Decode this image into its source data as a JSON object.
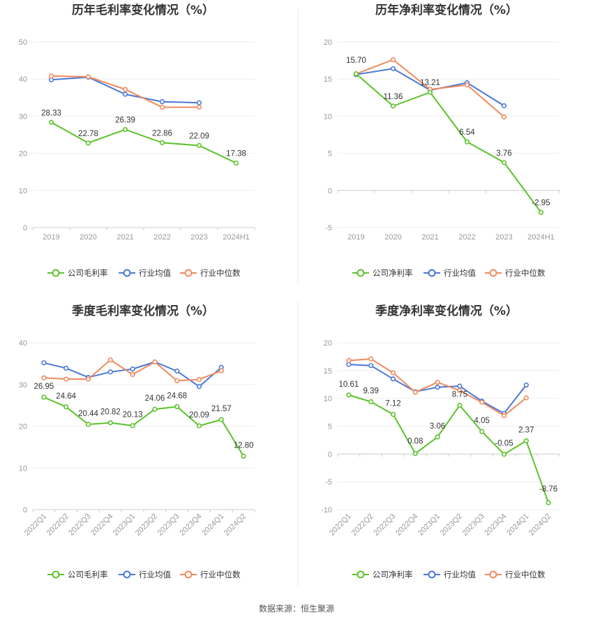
{
  "source_note": "数据来源：恒生聚源",
  "colors": {
    "company": "#5cc22a",
    "avg": "#4a78d6",
    "median": "#f08a5d"
  },
  "chart_data": [
    {
      "type": "line",
      "title": "历年毛利率变化情况（%）",
      "categories": [
        "2019",
        "2020",
        "2021",
        "2022",
        "2023",
        "2024H1"
      ],
      "yticks": [
        0,
        10,
        20,
        30,
        40,
        50
      ],
      "ylim": [
        0,
        50
      ],
      "rotate_xticks": false,
      "series": [
        {
          "name": "公司毛利率",
          "key": "company",
          "values": [
            28.33,
            22.78,
            26.39,
            22.86,
            22.09,
            17.38
          ],
          "labels": [
            "28.33",
            "22.78",
            "26.39",
            "22.86",
            "22.09",
            "17.38"
          ]
        },
        {
          "name": "行业均值",
          "key": "avg",
          "values": [
            39.8,
            40.5,
            35.9,
            33.9,
            33.6,
            null
          ]
        },
        {
          "name": "行业中位数",
          "key": "median",
          "values": [
            40.8,
            40.6,
            37.2,
            32.4,
            32.4,
            null
          ]
        }
      ]
    },
    {
      "type": "line",
      "title": "历年净利率变化情况（%）",
      "categories": [
        "2019",
        "2020",
        "2021",
        "2022",
        "2023",
        "2024H1"
      ],
      "yticks": [
        -5,
        0,
        5,
        10,
        15,
        20
      ],
      "ylim": [
        -5,
        20
      ],
      "rotate_xticks": false,
      "series": [
        {
          "name": "公司净利率",
          "key": "company",
          "values": [
            15.7,
            11.36,
            13.21,
            6.54,
            3.76,
            -2.95
          ],
          "labels": [
            "15.70",
            "11.36",
            "13.21",
            "6.54",
            "3.76",
            "-2.95"
          ]
        },
        {
          "name": "行业均值",
          "key": "avg",
          "values": [
            15.6,
            16.4,
            13.5,
            14.5,
            11.4,
            null
          ]
        },
        {
          "name": "行业中位数",
          "key": "median",
          "values": [
            15.7,
            17.6,
            13.6,
            14.2,
            9.9,
            null
          ]
        }
      ]
    },
    {
      "type": "line",
      "title": "季度毛利率变化情况（%）",
      "categories": [
        "2022Q1",
        "2022Q2",
        "2022Q3",
        "2022Q4",
        "2023Q1",
        "2023Q2",
        "2023Q3",
        "2023Q4",
        "2024Q1",
        "2024Q2"
      ],
      "yticks": [
        0,
        10,
        20,
        30,
        40
      ],
      "ylim": [
        0,
        40
      ],
      "rotate_xticks": true,
      "series": [
        {
          "name": "公司毛利率",
          "key": "company",
          "values": [
            26.95,
            24.64,
            20.44,
            20.82,
            20.13,
            24.06,
            24.68,
            20.09,
            21.57,
            12.8
          ],
          "labels": [
            "26.95",
            "24.64",
            "20.44",
            "20.82",
            "20.13",
            "24.06",
            "24.68",
            "20.09",
            "21.57",
            "12.80"
          ]
        },
        {
          "name": "行业均值",
          "key": "avg",
          "values": [
            35.2,
            33.9,
            31.7,
            33.0,
            33.7,
            35.4,
            33.2,
            29.5,
            34.1,
            null
          ]
        },
        {
          "name": "行业中位数",
          "key": "median",
          "values": [
            31.6,
            31.3,
            31.3,
            35.9,
            32.4,
            35.4,
            30.9,
            31.2,
            33.3,
            null
          ]
        }
      ]
    },
    {
      "type": "line",
      "title": "季度净利率变化情况（%）",
      "categories": [
        "2022Q1",
        "2022Q2",
        "2022Q3",
        "2022Q4",
        "2023Q1",
        "2023Q2",
        "2023Q3",
        "2023Q4",
        "2024Q1",
        "2024Q2"
      ],
      "yticks": [
        -10,
        -5,
        0,
        5,
        10,
        15,
        20
      ],
      "ylim": [
        -10,
        20
      ],
      "rotate_xticks": true,
      "series": [
        {
          "name": "公司净利率",
          "key": "company",
          "values": [
            10.61,
            9.39,
            7.12,
            0.08,
            3.06,
            8.75,
            4.05,
            -0.05,
            2.37,
            -8.76
          ],
          "labels": [
            "10.61",
            "9.39",
            "7.12",
            "0.08",
            "3.06",
            "8.75",
            "4.05",
            "-0.05",
            "2.37",
            "-8.76"
          ]
        },
        {
          "name": "行业均值",
          "key": "avg",
          "values": [
            16.1,
            15.9,
            13.5,
            11.2,
            12.0,
            12.2,
            9.5,
            7.3,
            12.4,
            null
          ]
        },
        {
          "name": "行业中位数",
          "key": "median",
          "values": [
            16.8,
            17.1,
            14.6,
            11.1,
            12.9,
            11.4,
            9.3,
            6.9,
            10.1,
            null
          ]
        }
      ]
    }
  ]
}
